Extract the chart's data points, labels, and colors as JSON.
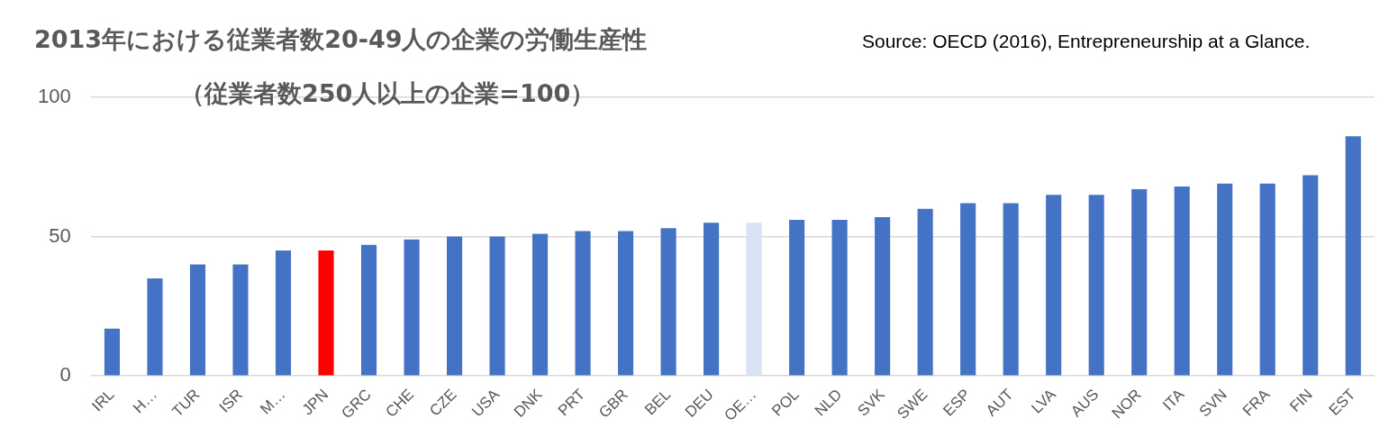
{
  "chart_data": {
    "type": "bar",
    "title": "2013年における従業者数20-49人の企業の労働生産性",
    "subtitle": "（従業者数250人以上の企業=100）",
    "annotations": [
      "Source: OECD (2016), Entrepreneurship at a Glance."
    ],
    "categories": [
      "IRL",
      "H…",
      "TUR",
      "ISR",
      "M…",
      "JPN",
      "GRC",
      "CHE",
      "CZE",
      "USA",
      "DNK",
      "PRT",
      "GBR",
      "BEL",
      "DEU",
      "OE…",
      "POL",
      "NLD",
      "SVK",
      "SWE",
      "ESP",
      "AUT",
      "LVA",
      "AUS",
      "NOR",
      "ITA",
      "SVN",
      "FRA",
      "FIN",
      "EST"
    ],
    "values": [
      17,
      35,
      40,
      40,
      45,
      45,
      47,
      49,
      50,
      50,
      51,
      52,
      52,
      53,
      55,
      55,
      56,
      56,
      57,
      60,
      62,
      62,
      65,
      65,
      67,
      68,
      69,
      69,
      72,
      86
    ],
    "colors": [
      "#4472c4",
      "#4472c4",
      "#4472c4",
      "#4472c4",
      "#4472c4",
      "#ff0000",
      "#4472c4",
      "#4472c4",
      "#4472c4",
      "#4472c4",
      "#4472c4",
      "#4472c4",
      "#4472c4",
      "#4472c4",
      "#4472c4",
      "#dae3f3",
      "#4472c4",
      "#4472c4",
      "#4472c4",
      "#4472c4",
      "#4472c4",
      "#4472c4",
      "#4472c4",
      "#4472c4",
      "#4472c4",
      "#4472c4",
      "#4472c4",
      "#4472c4",
      "#4472c4",
      "#4472c4"
    ],
    "ylim": [
      0,
      100
    ],
    "yticks": [
      0,
      50,
      100
    ],
    "grid": "y",
    "legend": false
  }
}
